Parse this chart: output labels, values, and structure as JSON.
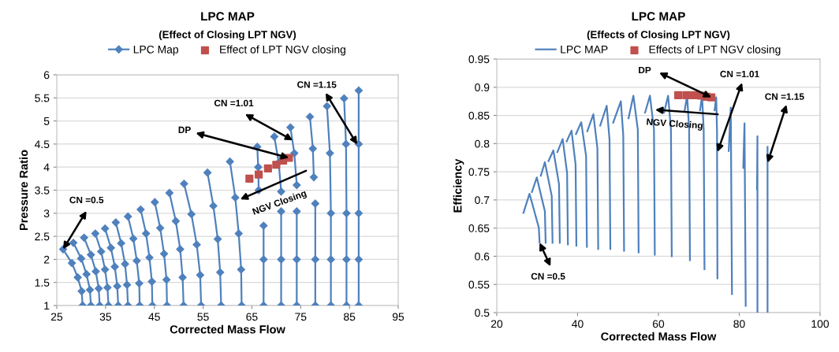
{
  "chart_data": [
    {
      "type": "line",
      "title": "LPC MAP",
      "subtitle": "(Effect of Closing LPT NGV)",
      "xlabel": "Corrected Mass Flow",
      "ylabel": "Pressure Ratio",
      "xlim": [
        25,
        95
      ],
      "ylim": [
        1,
        6
      ],
      "xticks": [
        25,
        35,
        45,
        55,
        65,
        75,
        85,
        95
      ],
      "yticks": [
        1,
        1.5,
        2,
        2.5,
        3,
        3.5,
        4,
        4.5,
        5,
        5.5,
        6
      ],
      "grid": "y",
      "legend": "top",
      "line_style": "solid",
      "series": [
        {
          "name": "LPC Map",
          "color": "#4f81bd",
          "marker": "diamond",
          "x": [
            26.3,
            28.1,
            29.3,
            30.1,
            30.3,
            null,
            28.4,
            30.0,
            31.1,
            31.8,
            32.0,
            null,
            30.6,
            32.0,
            33.0,
            33.6,
            33.8,
            null,
            32.9,
            34.1,
            34.9,
            35.4,
            35.6,
            null,
            34.9,
            36.1,
            36.9,
            37.4,
            37.6,
            null,
            37.1,
            38.2,
            39.0,
            39.4,
            39.6,
            null,
            39.6,
            40.7,
            41.4,
            41.9,
            42.0,
            null,
            42.2,
            43.3,
            44.0,
            44.5,
            44.6,
            null,
            45.1,
            46.2,
            47.0,
            47.5,
            47.6,
            null,
            48.1,
            49.4,
            50.3,
            50.8,
            51.0,
            null,
            51.1,
            52.6,
            53.7,
            54.4,
            54.6,
            null,
            55.9,
            57.1,
            58.0,
            58.5,
            58.7,
            null,
            60.5,
            61.6,
            62.3,
            62.8,
            62.9,
            null,
            66.1,
            66.3,
            66.4,
            null,
            67.4,
            67.4,
            67.4,
            null,
            69.6,
            70.5,
            71.0,
            null,
            71.0,
            71.0,
            71.0,
            null,
            72.9,
            73.7,
            74.2,
            null,
            74.2,
            74.2,
            74.2,
            null,
            76.9,
            77.5,
            77.7,
            null,
            78.0,
            78.0,
            78.0,
            null,
            80.4,
            81.0,
            81.2,
            81.2,
            81.2,
            null,
            83.9,
            84.3,
            84.4,
            84.4,
            84.4,
            null,
            86.9,
            86.9,
            86.9,
            86.9,
            86.9
          ],
          "values": [
            2.22,
            1.92,
            1.61,
            1.31,
            1.0,
            null,
            2.36,
            2.02,
            1.68,
            1.34,
            1.0,
            null,
            2.47,
            2.1,
            1.74,
            1.37,
            1.0,
            null,
            2.56,
            2.17,
            1.78,
            1.39,
            1.0,
            null,
            2.67,
            2.25,
            1.84,
            1.42,
            1.0,
            null,
            2.8,
            2.35,
            1.9,
            1.45,
            1.0,
            null,
            2.93,
            2.45,
            1.97,
            1.48,
            1.0,
            null,
            3.08,
            2.56,
            2.04,
            1.52,
            1.0,
            null,
            3.24,
            2.68,
            2.12,
            1.56,
            1.0,
            null,
            3.44,
            2.83,
            2.22,
            1.61,
            1.0,
            null,
            3.64,
            2.98,
            2.32,
            1.66,
            1.0,
            null,
            3.88,
            3.16,
            2.44,
            1.72,
            1.0,
            null,
            4.12,
            3.34,
            2.56,
            1.78,
            1.0,
            null,
            4.44,
            4.0,
            3.5,
            null,
            2.73,
            2.0,
            1.0,
            null,
            4.66,
            4.1,
            3.47,
            null,
            3.04,
            2.0,
            1.0,
            null,
            4.86,
            4.3,
            3.61,
            null,
            3.04,
            2.0,
            1.0,
            null,
            5.09,
            4.4,
            3.78,
            null,
            3.21,
            2.0,
            1.0,
            null,
            5.32,
            4.3,
            3.0,
            2.0,
            1.0,
            null,
            5.49,
            4.5,
            3.0,
            2.0,
            1.0,
            null,
            5.66,
            4.5,
            3.0,
            2.0,
            1.0
          ]
        },
        {
          "name": "Effect of LPT NGV closing",
          "type": "scatter",
          "color": "#c0504d",
          "marker": "square",
          "x": [
            64.5,
            66.4,
            68.3,
            70.0,
            71.4,
            72.6
          ],
          "values": [
            3.75,
            3.84,
            3.97,
            4.05,
            4.14,
            4.2
          ]
        }
      ],
      "annotations": [
        {
          "text": "CN =0.5",
          "x": 26.3,
          "y": 2.22
        },
        {
          "text": "DP",
          "x": 72.6,
          "y": 4.2
        },
        {
          "text": "CN =1.01",
          "x": 73.4,
          "y": 4.58
        },
        {
          "text": "CN =1.15",
          "x": 86.6,
          "y": 4.49
        },
        {
          "text": "NGV Closing",
          "x": 62.6,
          "y": 3.3
        }
      ]
    },
    {
      "type": "line",
      "title": "LPC MAP",
      "subtitle": "(Effects of Closing LPT NGV)",
      "xlabel": "Corrected Mass Flow",
      "ylabel": "Efficiency",
      "xlim": [
        20,
        100
      ],
      "ylim": [
        0.5,
        0.95
      ],
      "xticks": [
        20,
        40,
        60,
        80,
        100
      ],
      "yticks": [
        0.5,
        0.55,
        0.6,
        0.65,
        0.7,
        0.75,
        0.8,
        0.85,
        0.9,
        0.95
      ],
      "grid": "y",
      "legend": "top",
      "line_style": "solid",
      "series": [
        {
          "name": "LPC MAP",
          "color": "#4f81bd",
          "marker": "none",
          "x": [
            26.6,
            28.1,
            30.4,
            30.6,
            null,
            28.7,
            29.9,
            31.9,
            32.1,
            null,
            30.9,
            31.9,
            33.6,
            33.8,
            null,
            32.8,
            34.0,
            35.4,
            35.6,
            null,
            35.0,
            36.3,
            37.4,
            37.6,
            null,
            37.3,
            38.5,
            39.5,
            39.7,
            null,
            39.6,
            40.9,
            42.1,
            42.3,
            null,
            42.4,
            43.9,
            44.9,
            45.1,
            null,
            45.6,
            47.2,
            47.9,
            48.1,
            null,
            48.8,
            50.7,
            51.3,
            51.5,
            null,
            52.6,
            53.8,
            54.9,
            55.1,
            null,
            56.7,
            57.9,
            58.9,
            59.1,
            null,
            61.4,
            62.4,
            63.1,
            63.3,
            null,
            66.5,
            67.1,
            67.6,
            67.8,
            null,
            70.3,
            70.8,
            71.2,
            71.4,
            null,
            73.9,
            74.3,
            74.5,
            74.6,
            null,
            77.4,
            77.9,
            78.2,
            null,
            81.0,
            81.3,
            81.6,
            null,
            84.4,
            84.5,
            84.5,
            null,
            87.0,
            87.0
          ],
          "values": [
            0.677,
            0.711,
            0.651,
            0.624,
            null,
            0.714,
            0.74,
            0.68,
            0.624,
            null,
            0.743,
            0.767,
            0.707,
            0.624,
            null,
            0.769,
            0.788,
            0.728,
            0.624,
            null,
            0.785,
            0.808,
            0.748,
            0.621,
            null,
            0.804,
            0.823,
            0.763,
            0.619,
            null,
            0.817,
            0.838,
            0.778,
            0.617,
            null,
            0.822,
            0.852,
            0.792,
            0.613,
            null,
            0.832,
            0.867,
            0.807,
            0.613,
            null,
            0.837,
            0.875,
            0.815,
            0.61,
            null,
            0.845,
            0.885,
            0.825,
            0.607,
            null,
            0.855,
            0.885,
            0.825,
            0.603,
            null,
            0.855,
            0.885,
            0.825,
            0.6,
            null,
            0.859,
            0.885,
            0.825,
            0.593,
            null,
            0.859,
            0.885,
            0.825,
            0.577,
            null,
            0.859,
            0.882,
            0.822,
            0.561,
            null,
            0.787,
            0.864,
            0.533,
            null,
            0.757,
            0.836,
            0.512,
            null,
            0.719,
            0.813,
            0.5,
            null,
            0.794,
            0.5
          ]
        },
        {
          "name": "Effects of LPT NGV closing",
          "type": "scatter",
          "color": "#c0504d",
          "marker": "square",
          "x": [
            64.9,
            66.9,
            68.8,
            70.6,
            71.9,
            73.1
          ],
          "values": [
            0.886,
            0.886,
            0.886,
            0.885,
            0.883,
            0.882
          ]
        }
      ],
      "annotations": [
        {
          "text": "CN =0.5",
          "x": 30.6,
          "y": 0.624
        },
        {
          "text": "DP",
          "x": 73.1,
          "y": 0.882
        },
        {
          "text": "CN =1.01",
          "x": 74.6,
          "y": 0.785
        },
        {
          "text": "CN =1.15",
          "x": 87.0,
          "y": 0.766
        },
        {
          "text": "NGV Closing",
          "x": 59.2,
          "y": 0.86
        }
      ]
    }
  ]
}
